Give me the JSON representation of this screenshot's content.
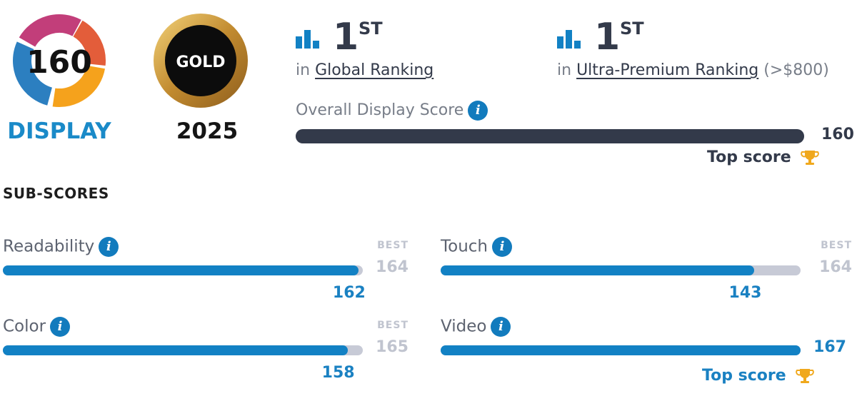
{
  "badge": {
    "score": "160",
    "caption": "DISPLAY",
    "award": "GOLD",
    "year": "2025"
  },
  "rankings": [
    {
      "position": "1",
      "suffix": "ST",
      "prefix": "in",
      "link_label": "Global Ranking",
      "extra": ""
    },
    {
      "position": "1",
      "suffix": "ST",
      "prefix": "in",
      "link_label": "Ultra-Premium Ranking",
      "extra": "(>$800)"
    }
  ],
  "overall": {
    "label": "Overall Display Score",
    "value": "160",
    "score": 160,
    "best": 160,
    "top_label": "Top score"
  },
  "subscores_heading": "SUB-SCORES",
  "subscores": [
    {
      "label": "Readability",
      "value": "162",
      "score": 162,
      "best_label": "BEST",
      "best": "164",
      "best_num": 164,
      "top_score": false
    },
    {
      "label": "Touch",
      "value": "143",
      "score": 143,
      "best_label": "BEST",
      "best": "164",
      "best_num": 164,
      "top_score": false
    },
    {
      "label": "Color",
      "value": "158",
      "score": 158,
      "best_label": "BEST",
      "best": "165",
      "best_num": 165,
      "top_score": false
    },
    {
      "label": "Video",
      "value": "167",
      "score": 167,
      "best_label": "",
      "best": "",
      "best_num": 167,
      "top_score": true,
      "top_label": "Top score"
    }
  ],
  "colors": {
    "brand_blue": "#1281c4",
    "dark": "#333a4a",
    "track": "#c7cad6",
    "trophy": "#f0a81c",
    "gold": "#c9922e"
  },
  "icons": {
    "ranking": "bar-chart-icon",
    "info": "info-icon",
    "trophy": "trophy-icon"
  }
}
